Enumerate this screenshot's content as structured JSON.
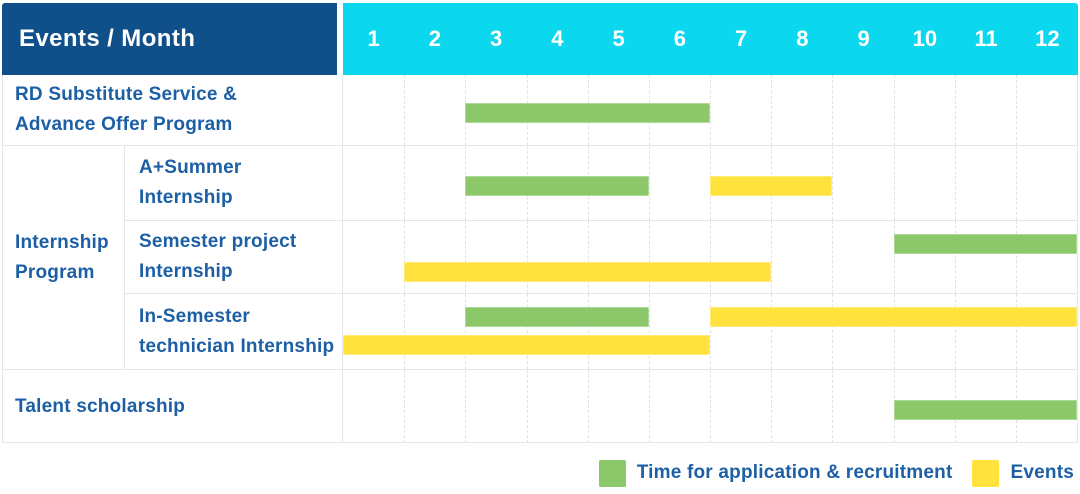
{
  "colors": {
    "header_blue": "#0f4f8a",
    "header_cyan": "#0bd7ee",
    "text_blue": "#1c5fa5",
    "bar_green": "#8cc869",
    "bar_yellow": "#ffe23e",
    "grid_line": "#e6e6e9",
    "grid_dash": "#e2e2e5"
  },
  "table": {
    "corner_header": "Events / Month"
  },
  "chart_data": {
    "type": "bar",
    "variant": "gantt-timeline",
    "title": "Events / Month",
    "x_categories": [
      "1",
      "2",
      "3",
      "4",
      "5",
      "6",
      "7",
      "8",
      "9",
      "10",
      "11",
      "12"
    ],
    "x_range": [
      1,
      12
    ],
    "grid": "vertical-dashed-month-lines",
    "legend_position": "bottom-right",
    "legend": [
      {
        "key": "recruitment",
        "label": "Time for application & recruitment",
        "color": "#8cc869"
      },
      {
        "key": "events",
        "label": "Events",
        "color": "#ffe23e"
      }
    ],
    "group_label": "Internship\nProgram",
    "rows": [
      {
        "group": "",
        "label": "RD Substitute Service &\nAdvance Offer Program",
        "bars": [
          {
            "series": "recruitment",
            "start_month": 3,
            "end_month": 6,
            "lane": "middle"
          }
        ]
      },
      {
        "group": "Internship Program",
        "label": "A+Summer\nInternship",
        "bars": [
          {
            "series": "recruitment",
            "start_month": 3,
            "end_month": 5,
            "lane": "middle"
          },
          {
            "series": "events",
            "start_month": 7,
            "end_month": 8,
            "lane": "middle"
          }
        ]
      },
      {
        "group": "Internship Program",
        "label": "Semester project\nInternship",
        "bars": [
          {
            "series": "recruitment",
            "start_month": 10,
            "end_month": 12,
            "lane": "top"
          },
          {
            "series": "events",
            "start_month": 2,
            "end_month": 7,
            "lane": "bottom"
          }
        ]
      },
      {
        "group": "Internship Program",
        "label": "In-Semester\ntechnician Internship",
        "bars": [
          {
            "series": "recruitment",
            "start_month": 3,
            "end_month": 5,
            "lane": "top"
          },
          {
            "series": "events",
            "start_month": 7,
            "end_month": 12,
            "lane": "top"
          },
          {
            "series": "events",
            "start_month": 1,
            "end_month": 6,
            "lane": "bottom"
          }
        ]
      },
      {
        "group": "",
        "label": "Talent scholarship",
        "bars": [
          {
            "series": "recruitment",
            "start_month": 10,
            "end_month": 12,
            "lane": "middle"
          }
        ]
      }
    ]
  }
}
